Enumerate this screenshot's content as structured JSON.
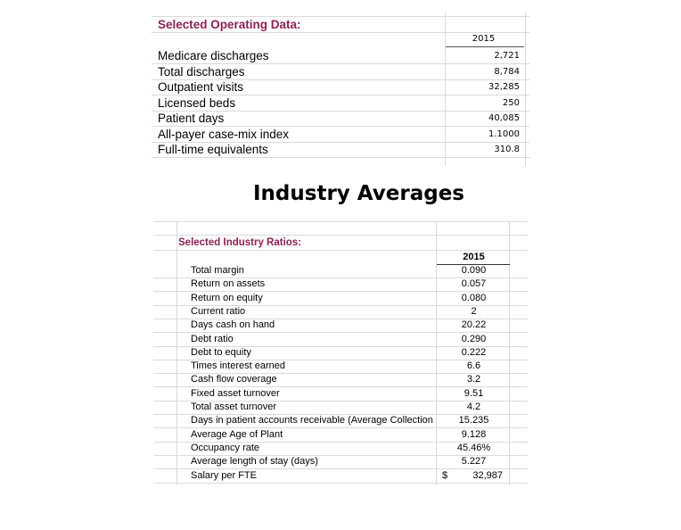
{
  "operating": {
    "title": "Selected Operating Data:",
    "year": "2015",
    "rows": [
      {
        "label": "Medicare discharges",
        "value": "2,721"
      },
      {
        "label": "Total discharges",
        "value": "8,784"
      },
      {
        "label": "Outpatient visits",
        "value": "32,285"
      },
      {
        "label": " Licensed beds",
        "value": "250"
      },
      {
        "label": "Patient days",
        "value": "40,085"
      },
      {
        "label": "All-payer case-mix index",
        "value": "1.1000"
      },
      {
        "label": "Full-time equivalents",
        "value": "310.8"
      }
    ]
  },
  "heading": "Industry Averages",
  "ratios": {
    "title": "Selected Industry Ratios:",
    "year": "2015",
    "rows": [
      {
        "label": "Total margin",
        "value": "0.090"
      },
      {
        "label": "Return on assets",
        "value": "0.057"
      },
      {
        "label": "Return on equity",
        "value": "0.080"
      },
      {
        "label": "Current ratio",
        "value": "2"
      },
      {
        "label": "Days cash on hand",
        "value": "20.22"
      },
      {
        "label": "Debt ratio",
        "value": "0.290"
      },
      {
        "label": "Debt to equity",
        "value": "0.222"
      },
      {
        "label": "Times interest earned",
        "value": "6.6"
      },
      {
        "label": "Cash flow coverage",
        "value": "3.2"
      },
      {
        "label": "Fixed asset turnover",
        "value": "9.51"
      },
      {
        "label": "Total asset turnover",
        "value": "4.2"
      },
      {
        "label": "Days in patient accounts receivable (Average Collection",
        "value": "15.235"
      },
      {
        "label": "Average Age of Plant",
        "value": "9.128"
      },
      {
        "label": "Occupancy rate",
        "value": "45.46%"
      },
      {
        "label": "Average length of stay (days)",
        "value": "5.227"
      },
      {
        "label": "Salary per FTE",
        "value": "32,987",
        "currency": "$"
      }
    ]
  }
}
